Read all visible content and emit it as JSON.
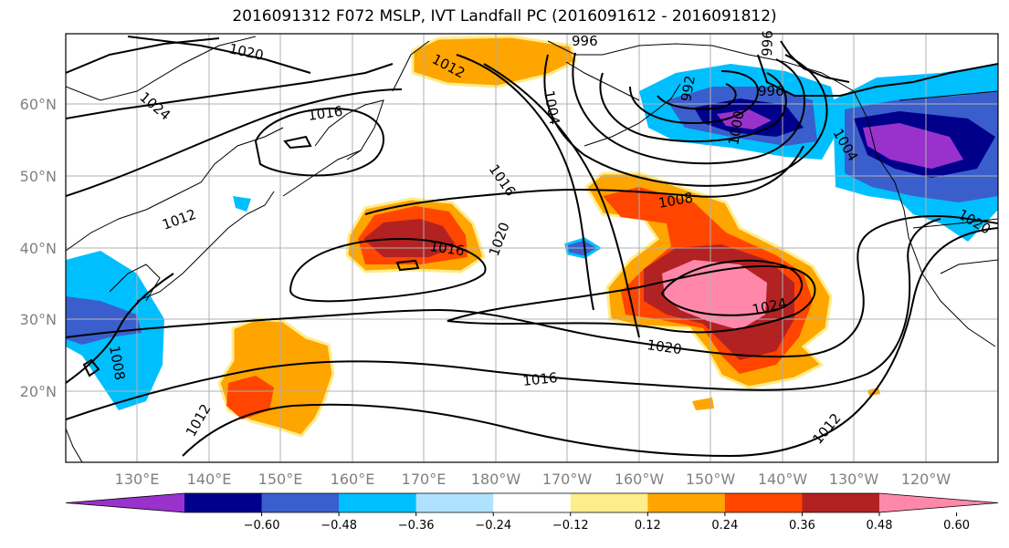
{
  "title": "2016091312 F072 MSLP, IVT Landfall PC (2016091612 - 2016091812)",
  "lat_labels": [
    "60°N",
    "50°N",
    "40°N",
    "30°N",
    "20°N"
  ],
  "lon_labels": [
    "130°E",
    "140°E",
    "150°E",
    "160°E",
    "170°E",
    "180°W",
    "170°W",
    "160°W",
    "150°W",
    "140°W",
    "130°W",
    "120°W"
  ],
  "isobar_labels": [
    "1020",
    "1024",
    "1016",
    "1012",
    "996",
    "1012",
    "1004",
    "992",
    "996",
    "996",
    "1000",
    "1004",
    "1008",
    "1016",
    "1020",
    "1016",
    "1024",
    "1020",
    "1016",
    "1012",
    "1012",
    "1008",
    "1020"
  ],
  "colorbar": {
    "ticks": [
      "−0.60",
      "−0.48",
      "−0.36",
      "−0.24",
      "−0.12",
      "0.12",
      "0.24",
      "0.36",
      "0.48",
      "0.60"
    ],
    "colors": [
      "#9932cc",
      "#00008b",
      "#3a5fcd",
      "#00bfff",
      "#b0e2ff",
      "#ffffff",
      "#ffec8b",
      "#ffa500",
      "#ff4500",
      "#b22222",
      "#ff88aa"
    ]
  }
}
